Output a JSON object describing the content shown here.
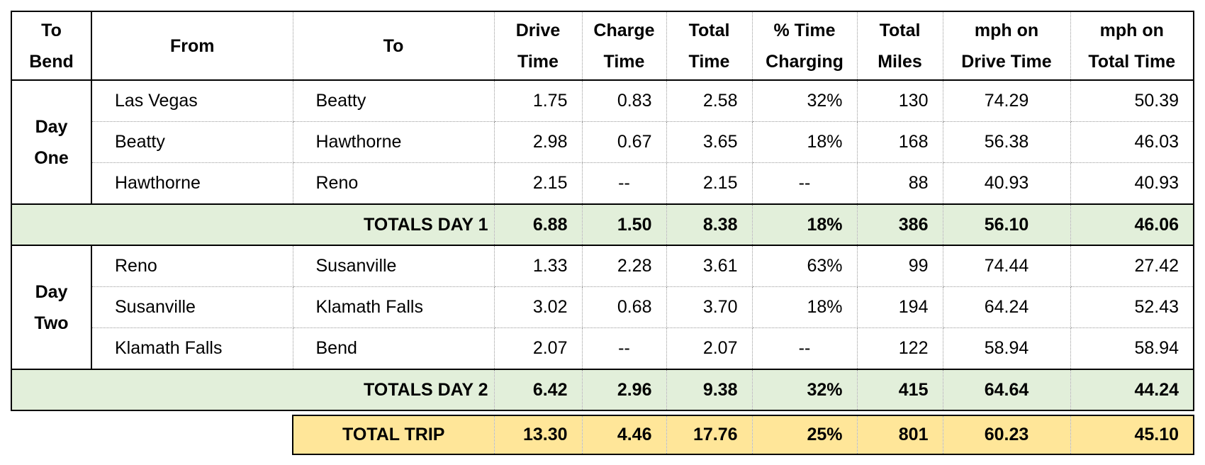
{
  "header": [
    [
      "To",
      "Bend"
    ],
    [
      "From"
    ],
    [
      "To"
    ],
    [
      "Drive",
      "Time"
    ],
    [
      "Charge",
      "Time"
    ],
    [
      "Total",
      "Time"
    ],
    [
      "% Time",
      "Charging"
    ],
    [
      "Total",
      "Miles"
    ],
    [
      "mph on",
      "Drive Time"
    ],
    [
      "mph on",
      "Total Time"
    ]
  ],
  "days": [
    {
      "label": "Day One",
      "rows": [
        [
          "Las Vegas",
          "Beatty",
          "1.75",
          "0.83",
          "2.58",
          "32%",
          "130",
          "74.29",
          "50.39"
        ],
        [
          "Beatty",
          "Hawthorne",
          "2.98",
          "0.67",
          "3.65",
          "18%",
          "168",
          "56.38",
          "46.03"
        ],
        [
          "Hawthorne",
          "Reno",
          "2.15",
          "--",
          "2.15",
          "--",
          "88",
          "40.93",
          "40.93"
        ]
      ],
      "totals": {
        "label": "TOTALS DAY 1",
        "values": [
          "6.88",
          "1.50",
          "8.38",
          "18%",
          "386",
          "56.10",
          "46.06"
        ]
      }
    },
    {
      "label": "Day Two",
      "rows": [
        [
          "Reno",
          "Susanville",
          "1.33",
          "2.28",
          "3.61",
          "63%",
          "99",
          "74.44",
          "27.42"
        ],
        [
          "Susanville",
          "Klamath Falls",
          "3.02",
          "0.68",
          "3.70",
          "18%",
          "194",
          "64.24",
          "52.43"
        ],
        [
          "Klamath Falls",
          "Bend",
          "2.07",
          "--",
          "2.07",
          "--",
          "122",
          "58.94",
          "58.94"
        ]
      ],
      "totals": {
        "label": "TOTALS DAY 2",
        "values": [
          "6.42",
          "2.96",
          "9.38",
          "32%",
          "415",
          "64.64",
          "44.24"
        ]
      }
    }
  ],
  "total_trip": {
    "label": "TOTAL TRIP",
    "values": [
      "13.30",
      "4.46",
      "17.76",
      "25%",
      "801",
      "60.23",
      "45.10"
    ]
  }
}
